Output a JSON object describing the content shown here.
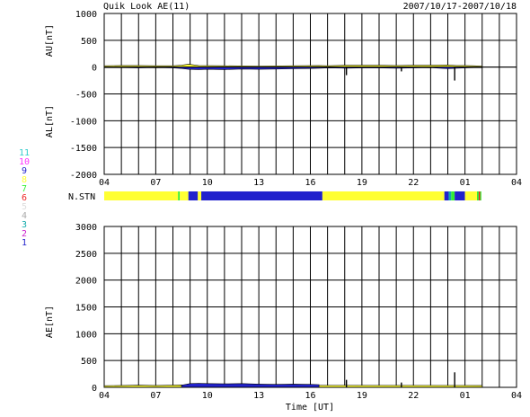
{
  "header": {
    "title": "Quik Look AE(11)",
    "date_range": "2007/10/17-2007/10/18"
  },
  "stations": {
    "label": "N.STN",
    "legend": [
      {
        "num": "11",
        "color": "#33cccc"
      },
      {
        "num": "10",
        "color": "#ff33ff"
      },
      {
        "num": "9",
        "color": "#2222cc"
      },
      {
        "num": "8",
        "color": "#ffff33"
      },
      {
        "num": "7",
        "color": "#33ee33"
      },
      {
        "num": "6",
        "color": "#ee2222"
      },
      {
        "num": "5",
        "color": "#dddddd"
      },
      {
        "num": "4",
        "color": "#aaaaaa"
      },
      {
        "num": "3",
        "color": "#11aaaa"
      },
      {
        "num": "2",
        "color": "#cc22cc"
      },
      {
        "num": "1",
        "color": "#2222cc"
      }
    ],
    "segments": [
      {
        "start": 4.0,
        "end": 8.3,
        "count": 8
      },
      {
        "start": 8.3,
        "end": 8.4,
        "count": 7
      },
      {
        "start": 8.4,
        "end": 8.9,
        "count": 8
      },
      {
        "start": 8.9,
        "end": 9.45,
        "count": 9
      },
      {
        "start": 9.45,
        "end": 9.65,
        "count": 8
      },
      {
        "start": 9.65,
        "end": 16.7,
        "count": 9
      },
      {
        "start": 16.7,
        "end": 23.8,
        "count": 8
      },
      {
        "start": 23.8,
        "end": 24.05,
        "count": 9
      },
      {
        "start": 24.05,
        "end": 24.2,
        "count": 3
      },
      {
        "start": 24.2,
        "end": 24.4,
        "count": 7
      },
      {
        "start": 24.4,
        "end": 25.0,
        "count": 9
      },
      {
        "start": 25.0,
        "end": 25.7,
        "count": 8
      },
      {
        "start": 25.7,
        "end": 25.8,
        "count": 7
      },
      {
        "start": 25.8,
        "end": 25.88,
        "count": 6
      },
      {
        "start": 25.88,
        "end": 25.95,
        "count": 7
      }
    ]
  },
  "chart_data": [
    {
      "type": "area",
      "panel": "AU / AL",
      "ylabel_upper": "AU[nT]",
      "ylabel_lower": "AL[nT]",
      "xlim": [
        4,
        28
      ],
      "ylim": [
        -2000,
        1000
      ],
      "yticks": [
        1000,
        500,
        0,
        -500,
        -1000,
        -1500,
        -2000
      ],
      "xtick_labels": [
        "04",
        "07",
        "10",
        "13",
        "16",
        "19",
        "22",
        "01",
        "04"
      ],
      "grid": true,
      "series": [
        {
          "color": "#ffff33",
          "x": [
            4.0,
            5.0,
            6.0,
            7.0,
            8.0,
            8.5,
            8.9,
            9.5,
            11.0,
            13.0,
            15.0,
            16.5,
            17.0,
            18.0,
            19.0,
            20.0,
            21.0,
            22.0,
            23.0,
            24.0,
            24.5,
            25.0,
            25.5,
            26.0
          ],
          "values": [
            25,
            30,
            30,
            25,
            25,
            35,
            55,
            30,
            25,
            20,
            25,
            30,
            25,
            35,
            35,
            35,
            30,
            35,
            35,
            40,
            30,
            30,
            25,
            20
          ]
        },
        {
          "color": "#2222cc",
          "x": [
            4.0,
            5.0,
            6.0,
            7.0,
            8.0,
            8.5,
            8.9,
            9.5,
            10.0,
            11.0,
            12.0,
            13.0,
            14.0,
            15.0,
            16.0,
            16.5,
            17.0,
            18.0,
            19.0,
            20.0,
            21.0,
            22.0,
            23.0,
            24.0,
            24.5,
            25.0,
            25.5,
            26.0
          ],
          "values": [
            -10,
            -10,
            -15,
            -10,
            -15,
            -25,
            -40,
            -45,
            -40,
            -45,
            -35,
            -40,
            -35,
            -30,
            -25,
            -20,
            -15,
            -20,
            -15,
            -15,
            -20,
            -15,
            -10,
            -30,
            -20,
            -15,
            -10,
            -10
          ]
        }
      ],
      "spikes": [
        {
          "x": 18.1,
          "value": -150
        },
        {
          "x": 21.3,
          "value": -80
        },
        {
          "x": 24.4,
          "value": -250
        }
      ]
    },
    {
      "type": "area",
      "panel": "AE",
      "ylabel": "AE[nT]",
      "xlabel": "Time [UT]",
      "xlim": [
        4,
        28
      ],
      "ylim": [
        0,
        3000
      ],
      "yticks": [
        3000,
        2500,
        2000,
        1500,
        1000,
        500,
        0
      ],
      "xtick_labels": [
        "04",
        "07",
        "10",
        "13",
        "16",
        "19",
        "22",
        "01",
        "04"
      ],
      "grid": true,
      "series": [
        {
          "color": "#ffff33",
          "x": [
            4.0,
            5.0,
            6.0,
            7.0,
            8.0,
            8.5,
            9.0,
            26.0
          ],
          "values": [
            30,
            35,
            40,
            35,
            40,
            45,
            40,
            35
          ]
        },
        {
          "color": "#2222cc",
          "x": [
            8.5,
            9.0,
            9.5,
            10.0,
            11.0,
            12.0,
            13.0,
            14.0,
            15.0,
            16.0,
            16.5
          ],
          "values": [
            40,
            70,
            75,
            70,
            65,
            70,
            60,
            55,
            60,
            55,
            50
          ]
        }
      ],
      "spikes": [
        {
          "x": 18.1,
          "value": 140
        },
        {
          "x": 21.3,
          "value": 90
        },
        {
          "x": 24.4,
          "value": 280
        }
      ]
    }
  ]
}
